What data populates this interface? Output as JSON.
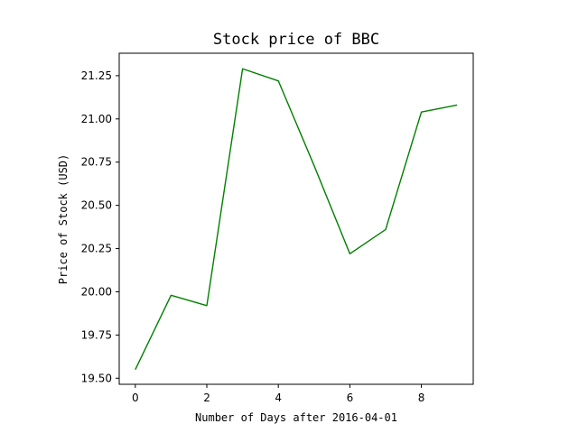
{
  "chart_data": {
    "type": "line",
    "title": "Stock price of BBC",
    "xlabel": "Number of Days after 2016-04-01",
    "ylabel": "Price of Stock (USD)",
    "xlim": [
      -0.45,
      9.45
    ],
    "ylim": [
      19.465,
      21.38
    ],
    "x_ticks": [
      0,
      2,
      4,
      6,
      8
    ],
    "x_tick_labels": [
      "0",
      "2",
      "4",
      "6",
      "8"
    ],
    "y_ticks": [
      19.5,
      19.75,
      20.0,
      20.25,
      20.5,
      20.75,
      21.0,
      21.25
    ],
    "y_tick_labels": [
      "19.50",
      "19.75",
      "20.00",
      "20.25",
      "20.50",
      "20.75",
      "21.00",
      "21.25"
    ],
    "grid": false,
    "series": [
      {
        "color": "#008000",
        "x": [
          0,
          1,
          2,
          3,
          4,
          5,
          6,
          7,
          8,
          9
        ],
        "y": [
          19.55,
          19.98,
          19.92,
          21.29,
          21.22,
          20.73,
          20.22,
          20.36,
          21.04,
          21.08
        ]
      }
    ]
  }
}
